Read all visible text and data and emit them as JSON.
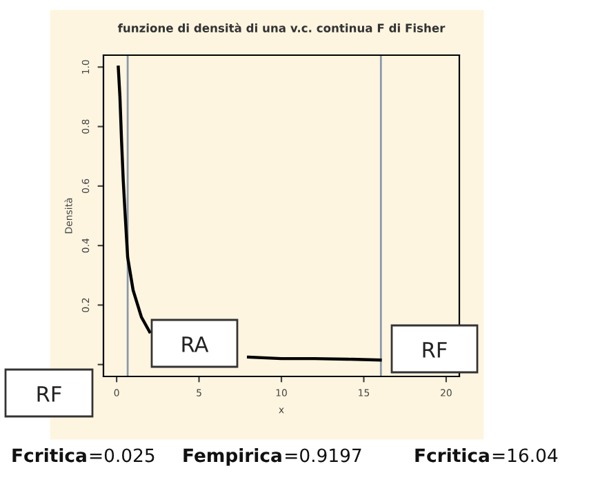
{
  "chart_data": {
    "type": "line",
    "title": "funzione di densità di una v.c. continua F di Fisher",
    "xlabel": "x",
    "ylabel": "Densità",
    "x": [
      0.1,
      0.2,
      0.3,
      0.4,
      0.5,
      0.67,
      1,
      1.5,
      2,
      3,
      4,
      5,
      6,
      7,
      8,
      10,
      12,
      14,
      16
    ],
    "series": [
      {
        "color": "#000000",
        "values": [
          1.0,
          0.9,
          0.75,
          0.62,
          0.52,
          0.36,
          0.25,
          0.16,
          0.11,
          null,
          null,
          null,
          null,
          null,
          0.025,
          0.02,
          0.02,
          0.018,
          0.015
        ]
      }
    ],
    "xlim": [
      -0.8,
      20.8
    ],
    "ylim": [
      -0.04,
      1.04
    ],
    "xticks": [
      0,
      5,
      10,
      15,
      20
    ],
    "yticks": [
      {
        "value": 0,
        "label": null
      },
      0.2,
      0.4,
      0.6,
      0.8,
      {
        "value": 1,
        "label": "1.0"
      }
    ],
    "ref_lines": [
      {
        "axis": "x",
        "value": 0.67,
        "color": "#8899aa"
      },
      {
        "axis": "x",
        "value": 16.04,
        "color": "#8899aa"
      }
    ],
    "grid": false,
    "legend": false,
    "marker": "none",
    "line_style": "solid",
    "annotations": [
      "RF",
      "RA",
      "RF",
      "Fcritica=0.025",
      "Fempirica=0.9197",
      "Fcritica=16.04"
    ]
  }
}
